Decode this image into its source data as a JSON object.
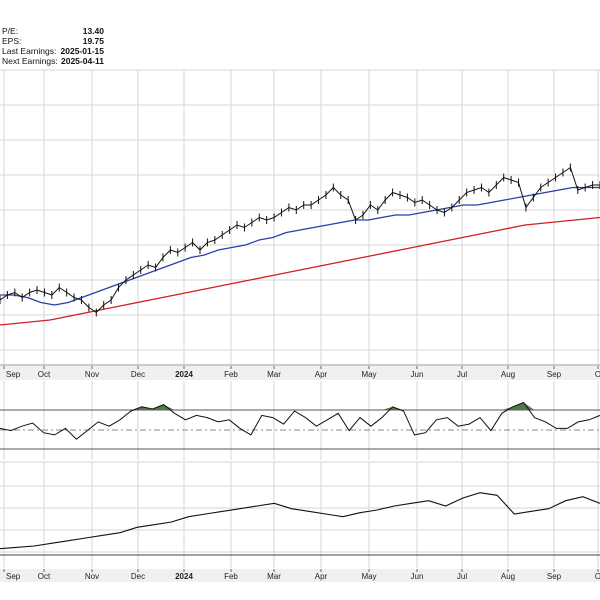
{
  "stats": [
    {
      "label": "P/E:",
      "value": "13.40"
    },
    {
      "label": "EPS:",
      "value": "19.75"
    },
    {
      "label": "Last Earnings:",
      "value": "2025-01-15"
    },
    {
      "label": "Next Earnings:",
      "value": "2025-04-11"
    }
  ],
  "colors": {
    "price": "#111111",
    "ma_short": "#2b3ea8",
    "ma_long": "#d02020",
    "grid": "#d6d6d6",
    "oscillator_fill": "#4f7a45",
    "axis_band": "#f0f0f0"
  },
  "chart_data": [
    {
      "type": "line",
      "panel": "price",
      "x_ticks": [
        "Sep",
        "Oct",
        "Nov",
        "Dec",
        "2024",
        "Feb",
        "Mar",
        "Apr",
        "May",
        "Jun",
        "Jul",
        "Aug",
        "Sep",
        "O"
      ],
      "series": [
        {
          "values": [
            50,
            52,
            53,
            51,
            53,
            54,
            53,
            52,
            55,
            53,
            51,
            50,
            47,
            45,
            48,
            50,
            55,
            58,
            60,
            62,
            64,
            63,
            67,
            70,
            69,
            71,
            73,
            70,
            73,
            74,
            76,
            78,
            80,
            79,
            81,
            83,
            82,
            83,
            85,
            87,
            86,
            88,
            88,
            90,
            92,
            95,
            92,
            90,
            82,
            84,
            88,
            86,
            90,
            93,
            92,
            91,
            89,
            90,
            88,
            86,
            85,
            87,
            90,
            93,
            94,
            95,
            93,
            96,
            99,
            98,
            97,
            87,
            91,
            95,
            97,
            99,
            101,
            103,
            94,
            95,
            96,
            96
          ]
        },
        {
          "values": [
            52,
            52,
            51,
            49,
            48,
            49,
            51,
            53,
            55,
            57,
            59,
            61,
            63,
            65,
            67,
            68,
            70,
            71,
            72,
            74,
            75,
            77,
            78,
            79,
            80,
            81,
            82,
            82,
            83,
            84,
            84,
            85,
            86,
            87,
            88,
            88,
            89,
            90,
            91,
            92,
            93,
            94,
            95,
            95,
            95
          ]
        },
        {
          "values": [
            40,
            41,
            42,
            44,
            46,
            48,
            50,
            52,
            54,
            56,
            58,
            60,
            62,
            64,
            66,
            68,
            70,
            72,
            74,
            76,
            78,
            80,
            81,
            82,
            83
          ]
        }
      ]
    },
    {
      "type": "area",
      "panel": "oscillator",
      "values": [
        50,
        48,
        52,
        55,
        46,
        44,
        50,
        40,
        48,
        56,
        52,
        58,
        66,
        70,
        68,
        72,
        64,
        58,
        62,
        60,
        56,
        58,
        50,
        44,
        62,
        60,
        54,
        66,
        60,
        52,
        58,
        64,
        48,
        60,
        52,
        60,
        70,
        66,
        44,
        46,
        58,
        60,
        52,
        54,
        60,
        48,
        64,
        70,
        74,
        60,
        56,
        50,
        50,
        56,
        58,
        62
      ]
    },
    {
      "type": "line",
      "panel": "relative",
      "values": [
        10,
        11,
        12,
        14,
        16,
        18,
        20,
        22,
        26,
        28,
        30,
        34,
        36,
        38,
        40,
        42,
        44,
        40,
        38,
        36,
        34,
        37,
        39,
        42,
        44,
        46,
        42,
        48,
        52,
        50,
        36,
        38,
        40,
        46,
        49,
        44
      ]
    }
  ]
}
